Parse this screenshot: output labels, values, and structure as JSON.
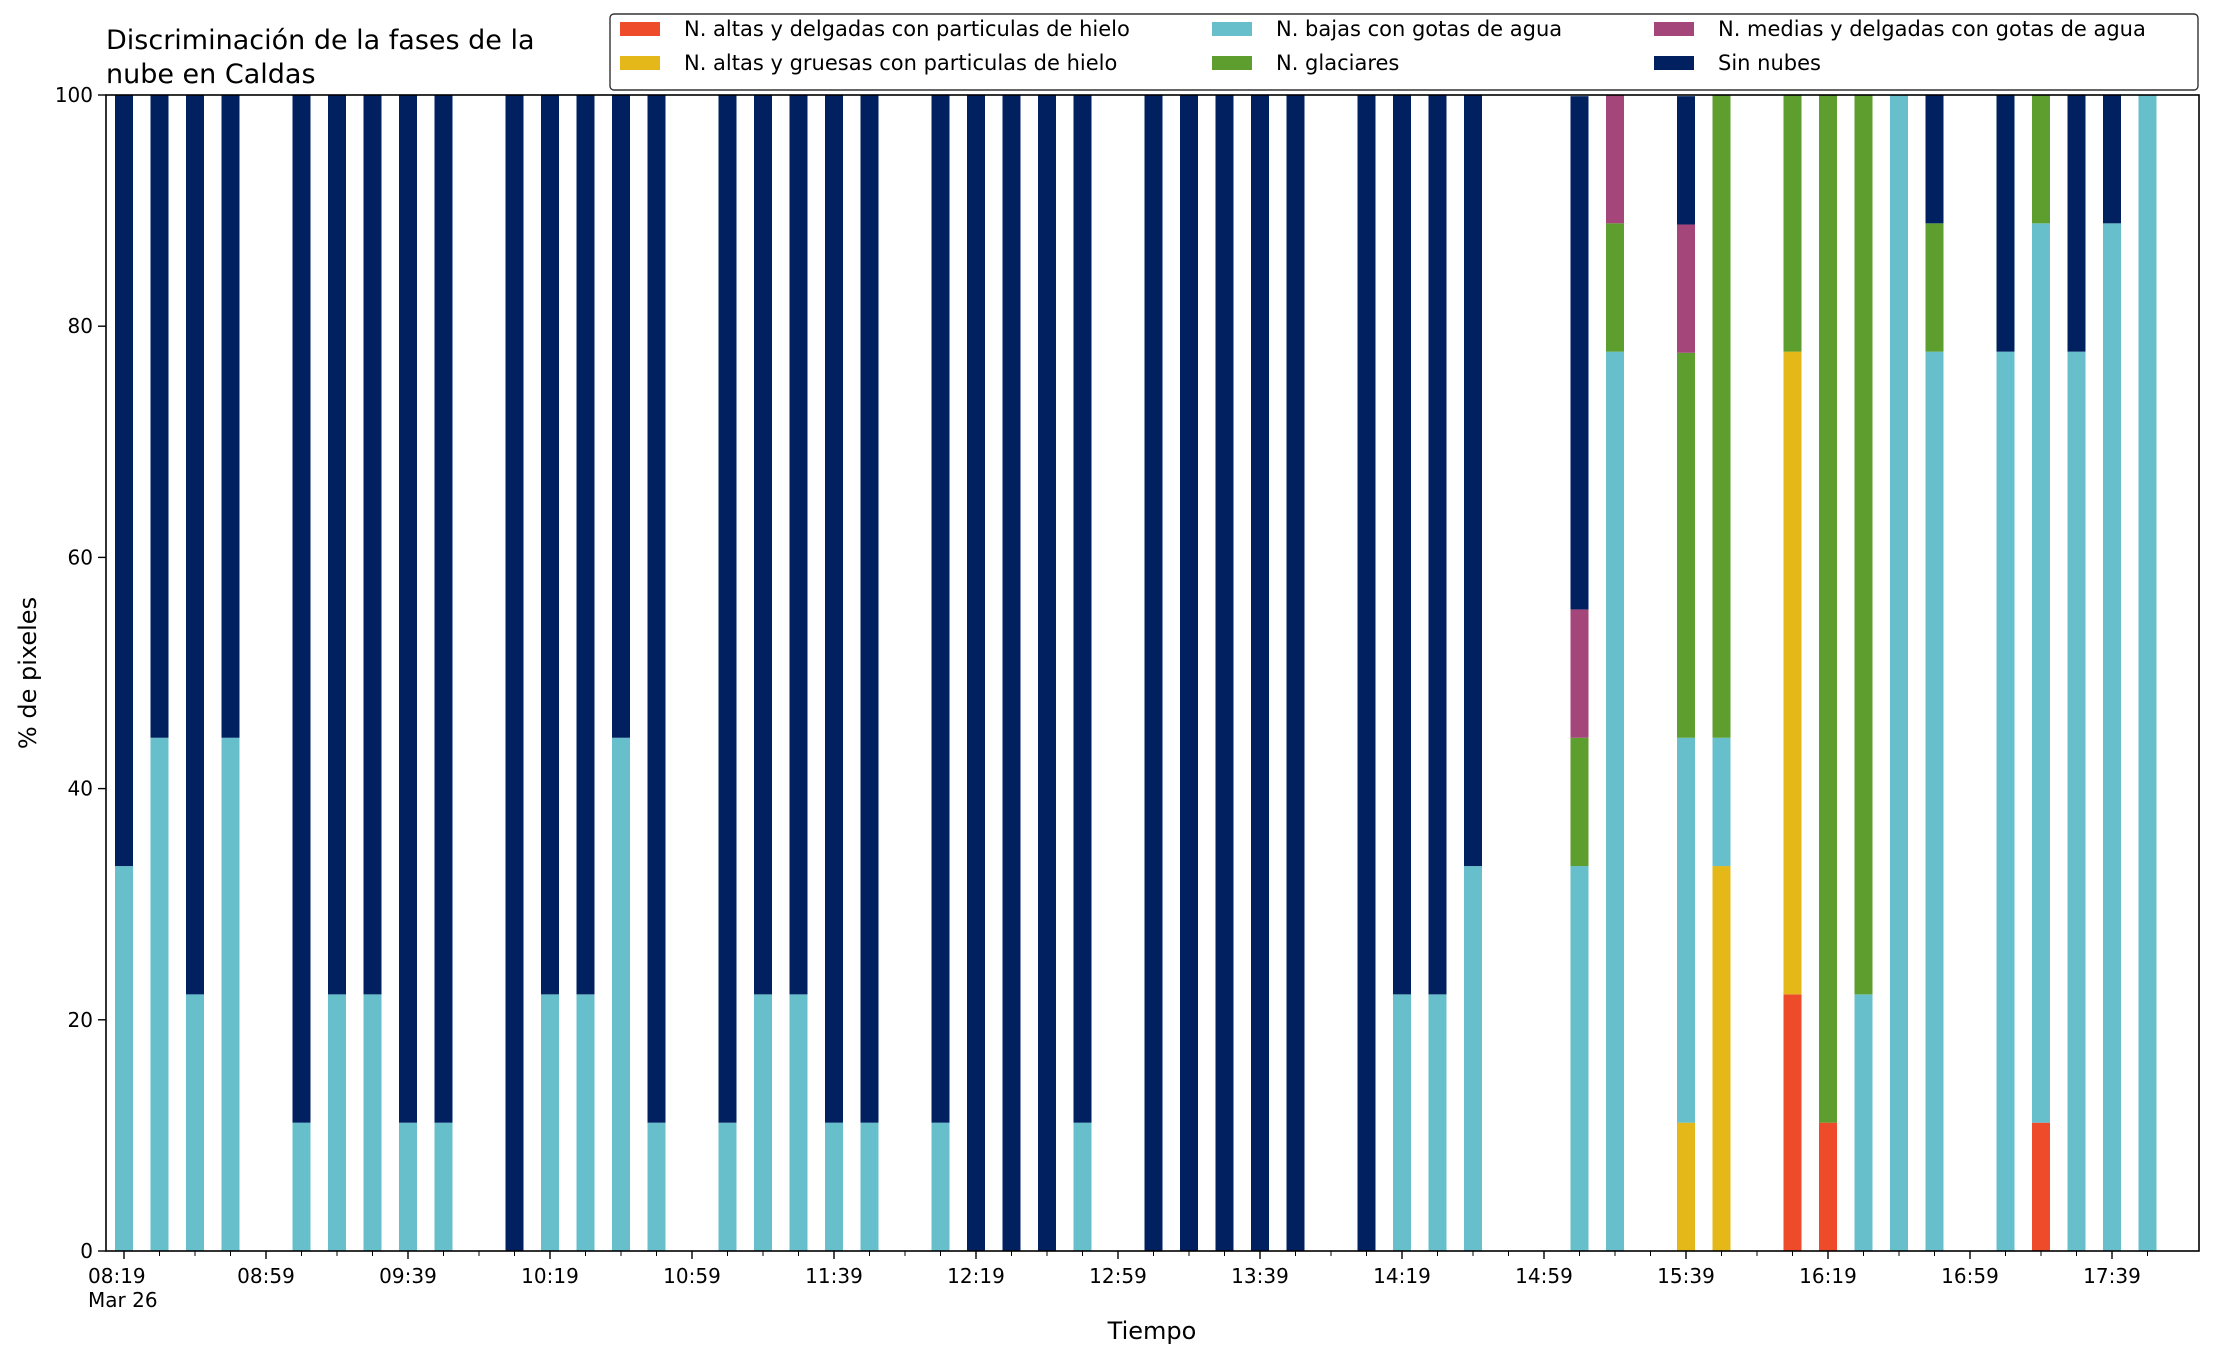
{
  "chart_data": {
    "type": "bar",
    "stacked": true,
    "title": "Discriminación de la fases de la nube en Caldas",
    "title_lines": [
      "Discriminación de la fases de la",
      "nube en Caldas"
    ],
    "xlabel": "Tiempo",
    "ylabel": "% de pixeles",
    "ylim": [
      0,
      100
    ],
    "yticks": [
      0,
      20,
      40,
      60,
      80,
      100
    ],
    "grid": false,
    "legend_position": "top-right",
    "x_interval_minutes": 10,
    "x_start": "08:19",
    "x_end": "17:49",
    "x_tick_labels": [
      "08:19",
      "08:59",
      "09:39",
      "10:19",
      "10:59",
      "11:39",
      "12:19",
      "12:59",
      "13:39",
      "14:19",
      "14:59",
      "15:39",
      "16:19",
      "16:59",
      "17:39"
    ],
    "x_date_label": "Mar 26",
    "x": [
      "08:19",
      "08:29",
      "08:39",
      "08:49",
      "08:59",
      "09:09",
      "09:19",
      "09:29",
      "09:39",
      "09:49",
      "09:59",
      "10:09",
      "10:19",
      "10:29",
      "10:39",
      "10:49",
      "10:59",
      "11:09",
      "11:19",
      "11:29",
      "11:39",
      "11:49",
      "11:59",
      "12:09",
      "12:19",
      "12:29",
      "12:39",
      "12:49",
      "12:59",
      "13:09",
      "13:19",
      "13:29",
      "13:39",
      "13:49",
      "13:59",
      "14:09",
      "14:19",
      "14:29",
      "14:39",
      "14:49",
      "14:59",
      "15:09",
      "15:19",
      "15:29",
      "15:39",
      "15:49",
      "15:59",
      "16:09",
      "16:19",
      "16:29",
      "16:39",
      "16:49",
      "16:59",
      "17:09",
      "17:19",
      "17:29",
      "17:39",
      "17:49"
    ],
    "series": [
      {
        "name": "N. altas y delgadas con particulas de hielo",
        "color": "#EE4B2B",
        "values": [
          0,
          0,
          0,
          0,
          null,
          0,
          0,
          0,
          0,
          0,
          null,
          0,
          0,
          0,
          0,
          0,
          null,
          0,
          0,
          0,
          0,
          0,
          null,
          0,
          0,
          0,
          0,
          0,
          null,
          0,
          0,
          0,
          0,
          0,
          null,
          0,
          0,
          0,
          0,
          0,
          null,
          0,
          0,
          null,
          0,
          0,
          null,
          22.2,
          11.1,
          0,
          0,
          0,
          null,
          0,
          11.1,
          0,
          0,
          0
        ]
      },
      {
        "name": "N. altas y gruesas con particulas de hielo",
        "color": "#E5B81A",
        "values": [
          0,
          0,
          0,
          0,
          null,
          0,
          0,
          0,
          0,
          0,
          null,
          0,
          0,
          0,
          0,
          0,
          null,
          0,
          0,
          0,
          0,
          0,
          null,
          0,
          0,
          0,
          0,
          0,
          null,
          0,
          0,
          0,
          0,
          0,
          null,
          0,
          0,
          0,
          0,
          0,
          null,
          0,
          0,
          null,
          11.1,
          33.3,
          null,
          55.6,
          0,
          0,
          0,
          0,
          null,
          0,
          0,
          0,
          0,
          0
        ]
      },
      {
        "name": "N. bajas con gotas de agua",
        "color": "#67BFCC",
        "values": [
          33.3,
          44.4,
          22.2,
          44.4,
          null,
          11.1,
          22.2,
          22.2,
          11.1,
          11.1,
          null,
          0,
          22.2,
          22.2,
          44.4,
          11.1,
          null,
          11.1,
          22.2,
          22.2,
          11.1,
          11.1,
          null,
          11.1,
          0,
          0,
          0,
          11.1,
          null,
          0,
          0,
          0,
          0,
          0,
          null,
          0,
          22.2,
          22.2,
          33.3,
          null,
          null,
          33.3,
          77.8,
          null,
          33.3,
          11.1,
          null,
          0,
          0,
          22.2,
          100,
          77.8,
          null,
          77.8,
          77.8,
          77.8,
          88.9,
          100
        ]
      },
      {
        "name": "N. glaciares",
        "color": "#5E9E2E",
        "values": [
          0,
          0,
          0,
          0,
          null,
          0,
          0,
          0,
          0,
          0,
          null,
          0,
          0,
          0,
          0,
          0,
          null,
          0,
          0,
          0,
          0,
          0,
          null,
          0,
          0,
          0,
          0,
          0,
          null,
          0,
          0,
          0,
          0,
          0,
          null,
          0,
          0,
          0,
          0,
          null,
          null,
          11.1,
          11.1,
          null,
          33.3,
          55.6,
          null,
          22.2,
          88.9,
          77.8,
          0,
          11.1,
          null,
          0,
          11.1,
          0,
          0,
          0
        ]
      },
      {
        "name": "N. medias y delgadas con gotas de agua",
        "color": "#A4467A",
        "values": [
          0,
          0,
          0,
          0,
          null,
          0,
          0,
          0,
          0,
          0,
          null,
          0,
          0,
          0,
          0,
          0,
          null,
          0,
          0,
          0,
          0,
          0,
          null,
          0,
          0,
          0,
          0,
          0,
          null,
          0,
          0,
          0,
          0,
          0,
          null,
          0,
          0,
          0,
          0,
          null,
          null,
          11.1,
          11.1,
          null,
          11.1,
          0,
          null,
          0,
          0,
          0,
          0,
          0,
          null,
          0,
          0,
          0,
          0,
          0
        ]
      },
      {
        "name": "Sin nubes",
        "color": "#002060",
        "values": [
          66.7,
          55.6,
          77.8,
          55.6,
          null,
          88.9,
          77.8,
          77.8,
          88.9,
          88.9,
          null,
          100,
          77.8,
          77.8,
          55.6,
          88.9,
          null,
          88.9,
          77.8,
          77.8,
          88.9,
          88.9,
          null,
          88.9,
          100,
          100,
          100,
          88.9,
          null,
          100,
          100,
          100,
          100,
          100,
          null,
          100,
          77.8,
          77.8,
          66.7,
          null,
          null,
          44.4,
          0,
          null,
          11.1,
          0,
          null,
          0,
          0,
          0,
          0,
          11.1,
          null,
          22.2,
          0,
          22.2,
          11.1,
          0
        ]
      }
    ]
  }
}
